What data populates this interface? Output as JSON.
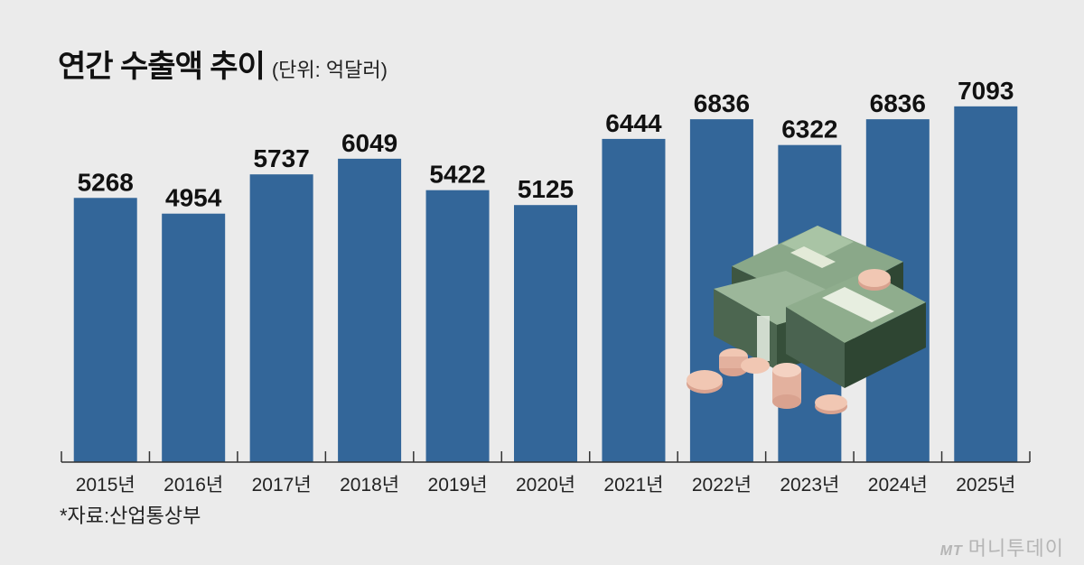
{
  "header": {
    "title": "연간 수출액 추이",
    "unit": "(단위: 억달러)"
  },
  "footer": {
    "source": "*자료:산업통상부",
    "watermark_logo": "MT",
    "watermark_text": "머니투데이"
  },
  "colors": {
    "bar": "#336699",
    "background": "#ebebeb",
    "value_label": "#111111"
  },
  "illustration": {
    "name": "money-stack-illustration",
    "description_icon": "dollar-bills-and-coins-icon"
  },
  "chart_data": {
    "type": "bar",
    "title": "연간 수출액 추이",
    "xlabel": "",
    "ylabel": "",
    "ylim": [
      0,
      7300
    ],
    "grid": false,
    "categories": [
      "2015년",
      "2016년",
      "2017년",
      "2018년",
      "2019년",
      "2020년",
      "2021년",
      "2022년",
      "2023년",
      "2024년",
      "2025년"
    ],
    "values": [
      5268,
      4954,
      5737,
      6049,
      5422,
      5125,
      6444,
      6836,
      6322,
      6836,
      7093
    ]
  }
}
